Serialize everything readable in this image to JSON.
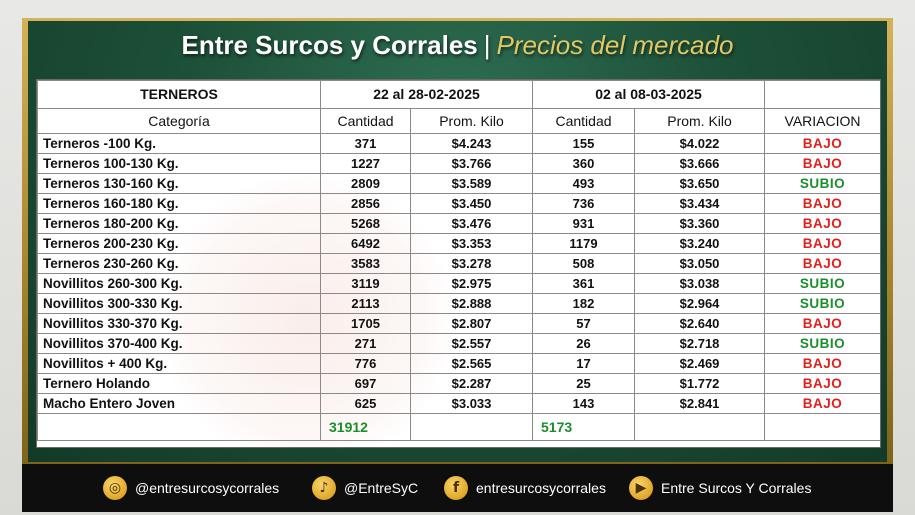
{
  "header": {
    "title_main": "Entre Surcos y Corrales",
    "title_sep": "|",
    "title_sub": "Precios del mercado"
  },
  "table": {
    "section_label": "TERNEROS",
    "period1": "22 al 28-02-2025",
    "period2": "02 al 08-03-2025",
    "col_categoria": "Categoría",
    "col_cantidad": "Cantidad",
    "col_prom": "Prom. Kilo",
    "col_variacion": "VARIACION",
    "rows": [
      {
        "cat": "Terneros -100 Kg.",
        "q1": "371",
        "p1": "$4.243",
        "q2": "155",
        "p2": "$4.022",
        "var": "BAJO",
        "tone": "bajo"
      },
      {
        "cat": "Terneros 100-130 Kg.",
        "q1": "1227",
        "p1": "$3.766",
        "q2": "360",
        "p2": "$3.666",
        "var": "BAJO",
        "tone": "bajo"
      },
      {
        "cat": "Terneros 130-160 Kg.",
        "q1": "2809",
        "p1": "$3.589",
        "q2": "493",
        "p2": "$3.650",
        "var": "SUBIO",
        "tone": "subio"
      },
      {
        "cat": "Terneros 160-180 Kg.",
        "q1": "2856",
        "p1": "$3.450",
        "q2": "736",
        "p2": "$3.434",
        "var": "BAJO",
        "tone": "bajo"
      },
      {
        "cat": "Terneros 180-200 Kg.",
        "q1": "5268",
        "p1": "$3.476",
        "q2": "931",
        "p2": "$3.360",
        "var": "BAJO",
        "tone": "bajo"
      },
      {
        "cat": "Terneros 200-230 Kg.",
        "q1": "6492",
        "p1": "$3.353",
        "q2": "1179",
        "p2": "$3.240",
        "var": "BAJO",
        "tone": "bajo"
      },
      {
        "cat": "Terneros 230-260 Kg.",
        "q1": "3583",
        "p1": "$3.278",
        "q2": "508",
        "p2": "$3.050",
        "var": "BAJO",
        "tone": "bajo"
      },
      {
        "cat": "Novillitos 260-300 Kg.",
        "q1": "3119",
        "p1": "$2.975",
        "q2": "361",
        "p2": "$3.038",
        "var": "SUBIO",
        "tone": "subio"
      },
      {
        "cat": "Novillitos 300-330 Kg.",
        "q1": "2113",
        "p1": "$2.888",
        "q2": "182",
        "p2": "$2.964",
        "var": "SUBIO",
        "tone": "subio"
      },
      {
        "cat": "Novillitos 330-370 Kg.",
        "q1": "1705",
        "p1": "$2.807",
        "q2": "57",
        "p2": "$2.640",
        "var": "BAJO",
        "tone": "bajo"
      },
      {
        "cat": "Novillitos 370-400 Kg.",
        "q1": "271",
        "p1": "$2.557",
        "q2": "26",
        "p2": "$2.718",
        "var": "SUBIO",
        "tone": "subio"
      },
      {
        "cat": "Novillitos  + 400 Kg.",
        "q1": "776",
        "p1": "$2.565",
        "q2": "17",
        "p2": "$2.469",
        "var": "BAJO",
        "tone": "bajo"
      },
      {
        "cat": "Ternero Holando",
        "q1": "697",
        "p1": "$2.287",
        "q2": "25",
        "p2": "$1.772",
        "var": "BAJO",
        "tone": "bajo"
      },
      {
        "cat": "Macho Entero Joven",
        "q1": "625",
        "p1": "$3.033",
        "q2": "143",
        "p2": "$2.841",
        "var": "BAJO",
        "tone": "bajo"
      }
    ],
    "total1": "31912",
    "total2": "5173"
  },
  "colors": {
    "bajo": "#e0201c",
    "subio": "#1a8e2a",
    "title_accent": "#e2c765"
  },
  "footer": {
    "items": [
      {
        "icon": "instagram-icon",
        "glyph": "◎",
        "label": "@entresurcosycorrales"
      },
      {
        "icon": "twitter-icon",
        "glyph": "♪",
        "label": "@EntreSyC"
      },
      {
        "icon": "facebook-icon",
        "glyph": "f",
        "label": "entresurcosycorrales"
      },
      {
        "icon": "youtube-icon",
        "glyph": "▶",
        "label": "Entre Surcos Y Corrales"
      }
    ]
  }
}
